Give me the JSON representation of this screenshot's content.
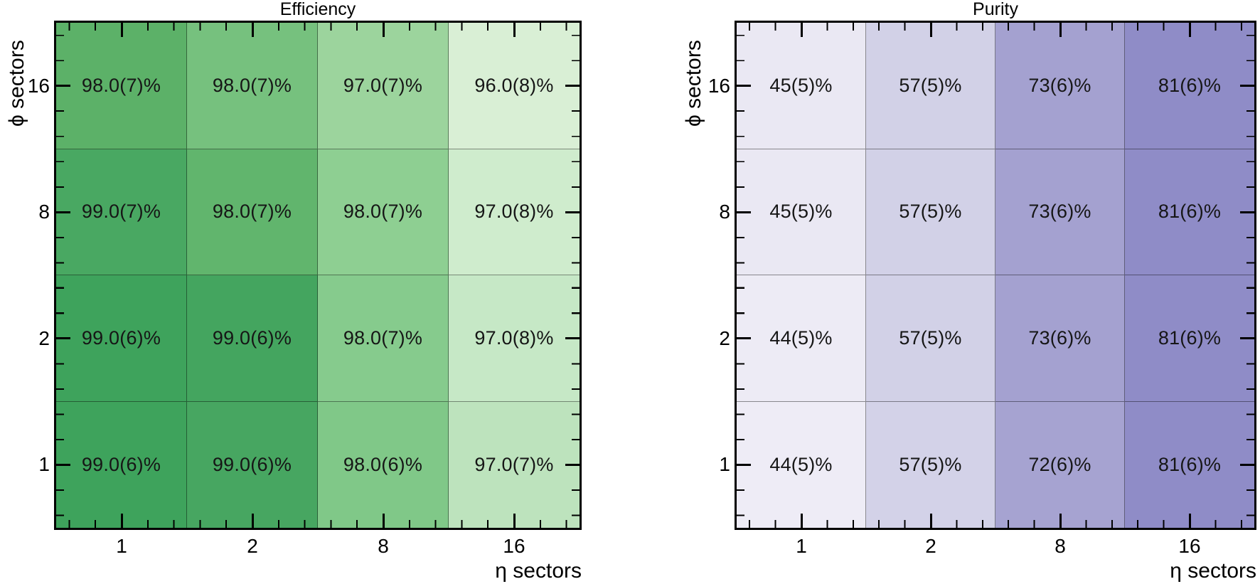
{
  "figure": {
    "background": "#ffffff"
  },
  "panels": [
    {
      "title": "Efficiency",
      "xlabel": "η sectors",
      "ylabel": "ϕ sectors",
      "x_ticks": [
        "1",
        "2",
        "8",
        "16"
      ],
      "y_ticks": [
        "16",
        "8",
        "2",
        "1"
      ],
      "rows": [
        {
          "cells": [
            {
              "label": "98.0(7)%",
              "color": "#5cb168"
            },
            {
              "label": "98.0(7)%",
              "color": "#76c17e"
            },
            {
              "label": "97.0(7)%",
              "color": "#9cd49d"
            },
            {
              "label": "96.0(8)%",
              "color": "#d9efd5"
            }
          ]
        },
        {
          "cells": [
            {
              "label": "99.0(7)%",
              "color": "#49a862"
            },
            {
              "label": "98.0(7)%",
              "color": "#61b56d"
            },
            {
              "label": "98.0(7)%",
              "color": "#8ecf92"
            },
            {
              "label": "97.0(8)%",
              "color": "#cfeccd"
            }
          ]
        },
        {
          "cells": [
            {
              "label": "99.0(6)%",
              "color": "#3ea35c"
            },
            {
              "label": "99.0(6)%",
              "color": "#44a55f"
            },
            {
              "label": "98.0(7)%",
              "color": "#86cb8d"
            },
            {
              "label": "97.0(8)%",
              "color": "#c6e8c6"
            }
          ]
        },
        {
          "cells": [
            {
              "label": "99.0(6)%",
              "color": "#3ea35c"
            },
            {
              "label": "99.0(6)%",
              "color": "#47a661"
            },
            {
              "label": "98.0(6)%",
              "color": "#80c888"
            },
            {
              "label": "97.0(7)%",
              "color": "#bde3bd"
            }
          ]
        }
      ]
    },
    {
      "title": "Purity",
      "xlabel": "η sectors",
      "ylabel": "ϕ sectors",
      "x_ticks": [
        "1",
        "2",
        "8",
        "16"
      ],
      "y_ticks": [
        "16",
        "8",
        "2",
        "1"
      ],
      "rows": [
        {
          "cells": [
            {
              "label": "45(5)%",
              "color": "#eae8f3"
            },
            {
              "label": "57(5)%",
              "color": "#d2d1e7"
            },
            {
              "label": "73(6)%",
              "color": "#a4a1d0"
            },
            {
              "label": "81(6)%",
              "color": "#8f8cc7"
            }
          ]
        },
        {
          "cells": [
            {
              "label": "45(5)%",
              "color": "#eae8f3"
            },
            {
              "label": "57(5)%",
              "color": "#d2d1e7"
            },
            {
              "label": "73(6)%",
              "color": "#a4a1d0"
            },
            {
              "label": "81(6)%",
              "color": "#8f8cc7"
            }
          ]
        },
        {
          "cells": [
            {
              "label": "44(5)%",
              "color": "#edebf5"
            },
            {
              "label": "57(5)%",
              "color": "#d2d1e7"
            },
            {
              "label": "73(6)%",
              "color": "#a4a1d0"
            },
            {
              "label": "81(6)%",
              "color": "#8f8cc7"
            }
          ]
        },
        {
          "cells": [
            {
              "label": "44(5)%",
              "color": "#eeecf6"
            },
            {
              "label": "57(5)%",
              "color": "#d3d2e8"
            },
            {
              "label": "72(6)%",
              "color": "#a6a3d1"
            },
            {
              "label": "81(6)%",
              "color": "#8f8cc7"
            }
          ]
        }
      ]
    }
  ],
  "chart_data": [
    {
      "type": "heatmap",
      "title": "Efficiency",
      "xlabel": "η sectors",
      "ylabel": "ϕ sectors",
      "x_categories": [
        "1",
        "2",
        "8",
        "16"
      ],
      "y_categories_top_to_bottom": [
        "16",
        "8",
        "2",
        "1"
      ],
      "cell_labels": [
        [
          "98.0(7)%",
          "98.0(7)%",
          "97.0(7)%",
          "96.0(8)%"
        ],
        [
          "99.0(7)%",
          "98.0(7)%",
          "98.0(7)%",
          "97.0(8)%"
        ],
        [
          "99.0(6)%",
          "99.0(6)%",
          "98.0(7)%",
          "97.0(8)%"
        ],
        [
          "99.0(6)%",
          "99.0(6)%",
          "98.0(6)%",
          "97.0(7)%"
        ]
      ],
      "values_percent": [
        [
          98.0,
          98.0,
          97.0,
          96.0
        ],
        [
          99.0,
          98.0,
          98.0,
          97.0
        ],
        [
          99.0,
          99.0,
          98.0,
          97.0
        ],
        [
          99.0,
          99.0,
          98.0,
          97.0
        ]
      ],
      "uncertainties_percent": [
        [
          0.7,
          0.7,
          0.7,
          0.8
        ],
        [
          0.7,
          0.7,
          0.7,
          0.8
        ],
        [
          0.6,
          0.6,
          0.7,
          0.8
        ],
        [
          0.6,
          0.6,
          0.6,
          0.7
        ]
      ],
      "colormap": "greens, darker = higher value",
      "grid": true,
      "ticks": "inward major + minor on all four sides"
    },
    {
      "type": "heatmap",
      "title": "Purity",
      "xlabel": "η sectors",
      "ylabel": "ϕ sectors",
      "x_categories": [
        "1",
        "2",
        "8",
        "16"
      ],
      "y_categories_top_to_bottom": [
        "16",
        "8",
        "2",
        "1"
      ],
      "cell_labels": [
        [
          "45(5)%",
          "57(5)%",
          "73(6)%",
          "81(6)%"
        ],
        [
          "45(5)%",
          "57(5)%",
          "73(6)%",
          "81(6)%"
        ],
        [
          "44(5)%",
          "57(5)%",
          "73(6)%",
          "81(6)%"
        ],
        [
          "44(5)%",
          "57(5)%",
          "72(6)%",
          "81(6)%"
        ]
      ],
      "values_percent": [
        [
          45,
          57,
          73,
          81
        ],
        [
          45,
          57,
          73,
          81
        ],
        [
          44,
          57,
          73,
          81
        ],
        [
          44,
          57,
          72,
          81
        ]
      ],
      "uncertainties_percent": [
        [
          5,
          5,
          6,
          6
        ],
        [
          5,
          5,
          6,
          6
        ],
        [
          5,
          5,
          6,
          6
        ],
        [
          5,
          5,
          6,
          6
        ]
      ],
      "colormap": "purples, darker = higher value",
      "grid": true,
      "ticks": "inward major + minor on all four sides"
    }
  ]
}
